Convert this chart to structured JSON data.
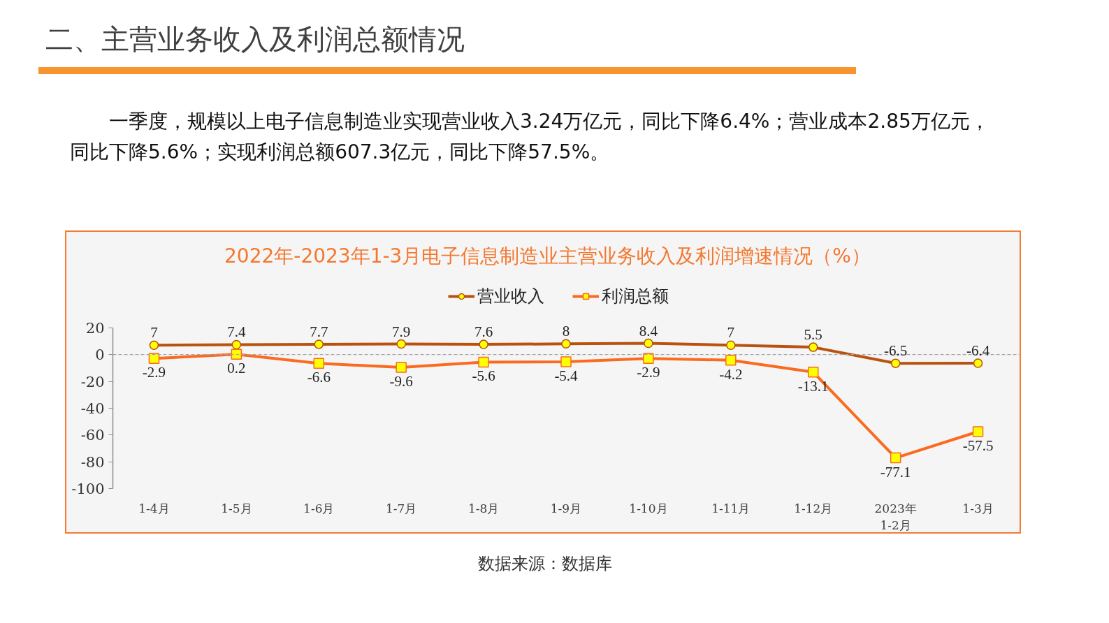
{
  "chart_data": {
    "type": "line",
    "title": "2022年-2023年1-3月电子信息制造业主营业务收入及利润增速情况（%）",
    "annotations": [
      "二、主营业务收入及利润总额情况",
      "一季度，规模以上电子信息制造业实现营业收入3.24万亿元，同比下降6.4%；营业成本2.85万亿元，同比下降5.6%；实现利润总额607.3亿元，同比下降57.5%。",
      "数据来源：数据库"
    ],
    "categories": [
      "1-4月",
      "1-5月",
      "1-6月",
      "1-7月",
      "1-8月",
      "1-9月",
      "1-10月",
      "1-11月",
      "1-12月",
      "2023年\n1-2月",
      "1-3月"
    ],
    "series": [
      {
        "name": "营业收入",
        "color": "#b9520f",
        "marker": "circle",
        "values": [
          7,
          7.4,
          7.7,
          7.9,
          7.6,
          8,
          8.4,
          7,
          5.5,
          -6.5,
          -6.4
        ]
      },
      {
        "name": "利润总额",
        "color": "#fb6a1e",
        "marker": "square",
        "values": [
          -2.9,
          0.2,
          -6.6,
          -9.6,
          -5.6,
          -5.4,
          -2.9,
          -4.2,
          -13.1,
          -77.1,
          -57.5
        ]
      }
    ],
    "ylim": [
      -100,
      20
    ],
    "yticks": [
      20,
      0,
      -20,
      -40,
      -60,
      -80,
      -100
    ],
    "ref_lines": [
      {
        "axis": "y",
        "value": 0,
        "color": "#a6a6a6",
        "line_style": "dashed"
      }
    ],
    "data_labels": true,
    "legend": "top"
  }
}
